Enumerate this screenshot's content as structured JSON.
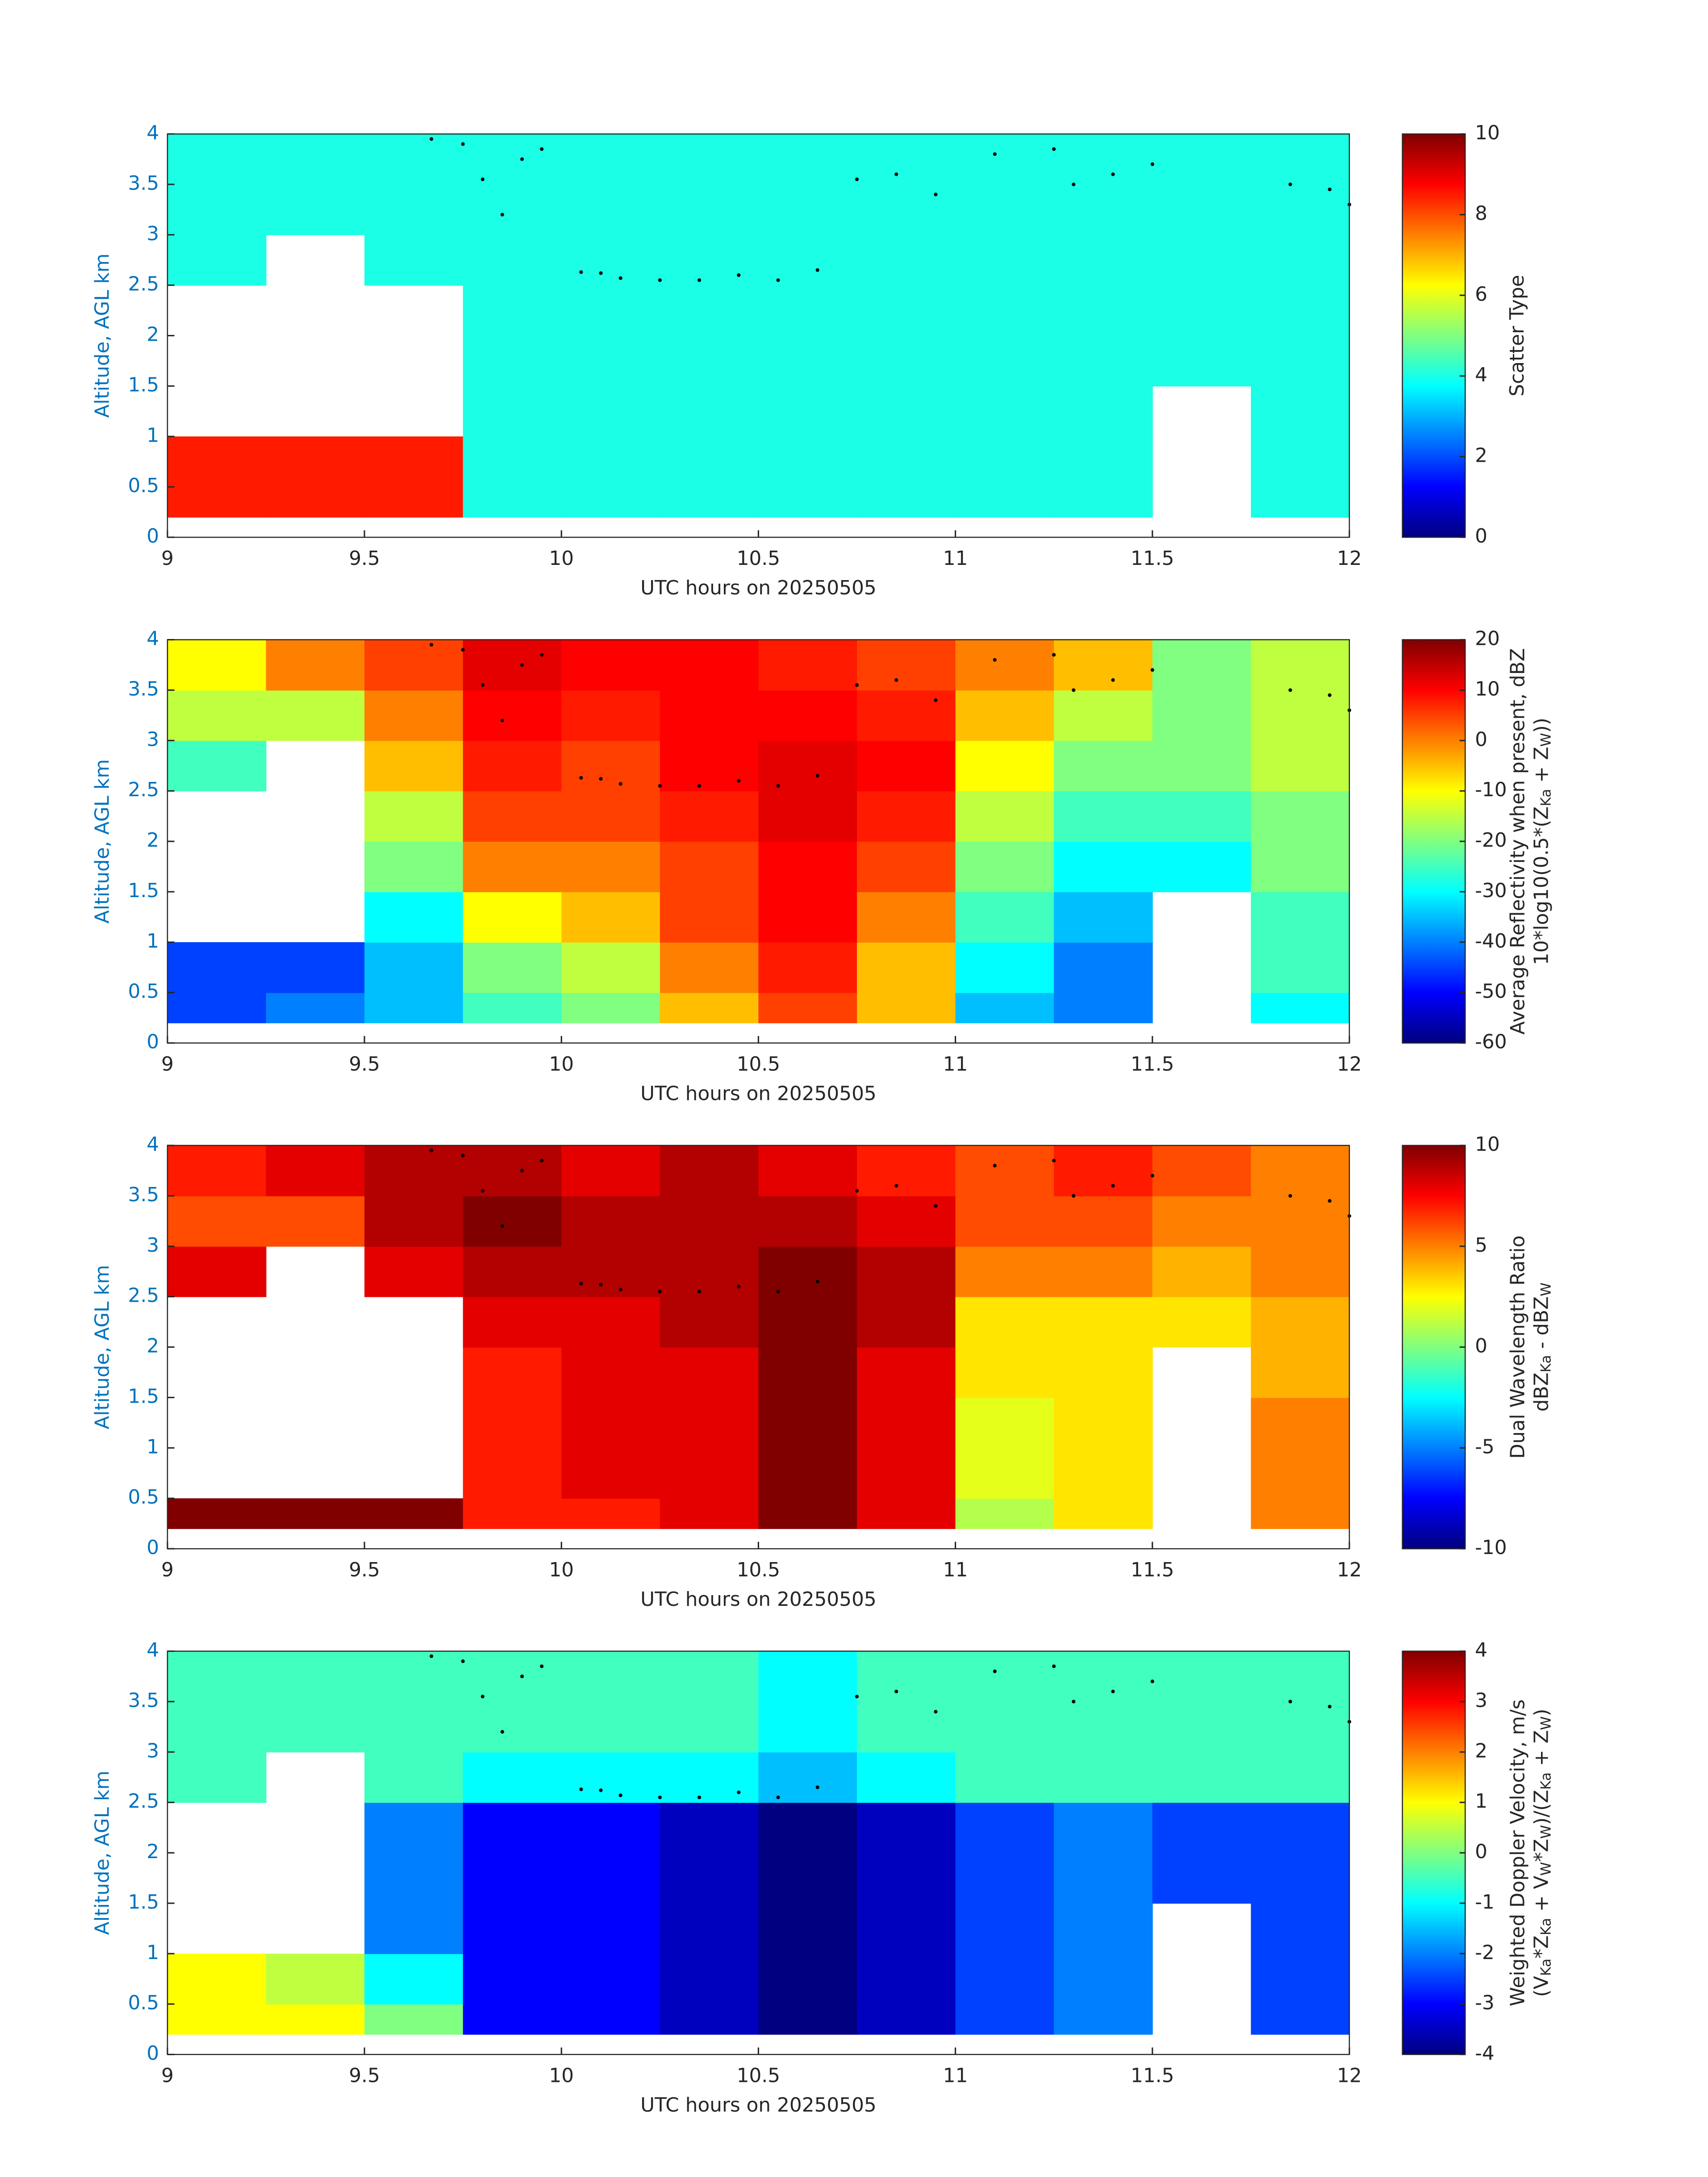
{
  "chart_data": [
    {
      "type": "heatmap",
      "colormap": "jet",
      "xlabel": "UTC hours on 20250505",
      "ylabel": "Altitude, AGL km",
      "xlim": [
        9,
        12
      ],
      "xticks": [
        9,
        9.5,
        10,
        10.5,
        11,
        11.5,
        12
      ],
      "ylim": [
        0,
        4
      ],
      "yticks": [
        0,
        0.5,
        1,
        1.5,
        2,
        2.5,
        3,
        3.5,
        4
      ],
      "zlim": [
        0,
        10
      ],
      "zticks": [
        0,
        2,
        4,
        6,
        8,
        10
      ],
      "colorbar_label": [
        [
          {
            "text": "Scatter Type",
            "sub": false
          }
        ]
      ],
      "x_bins": [
        9,
        9.25,
        9.5,
        9.75,
        10,
        10.25,
        10.5,
        10.75,
        11,
        11.25,
        11.5,
        11.75,
        12
      ],
      "y_bins": [
        0.2,
        0.5,
        1,
        1.5,
        2,
        2.5,
        3,
        3.5,
        4
      ],
      "z": [
        [
          8.5,
          8.5,
          8.5,
          4,
          4,
          4,
          4,
          4,
          4,
          4,
          null,
          4
        ],
        [
          8.5,
          8.5,
          8.5,
          4,
          4,
          4,
          4,
          4,
          4,
          4,
          null,
          4
        ],
        [
          null,
          null,
          null,
          4,
          4,
          4,
          4,
          4,
          4,
          4,
          null,
          4
        ],
        [
          null,
          null,
          null,
          4,
          4,
          4,
          4,
          4,
          4,
          4,
          4,
          4
        ],
        [
          null,
          null,
          null,
          4,
          4,
          4,
          4,
          4,
          4,
          4,
          4,
          4
        ],
        [
          4,
          null,
          4,
          4,
          4,
          4,
          4,
          4,
          4,
          4,
          4,
          4
        ],
        [
          4,
          4,
          4,
          4,
          4,
          4,
          4,
          4,
          4,
          4,
          4,
          4
        ],
        [
          4,
          4,
          4,
          4,
          4,
          4,
          4,
          4,
          4,
          4,
          4,
          4
        ]
      ],
      "markers_x": [
        9.67,
        9.75,
        9.8,
        9.85,
        9.9,
        9.95,
        10.05,
        10.1,
        10.15,
        10.25,
        10.35,
        10.45,
        10.55,
        10.65,
        10.75,
        10.85,
        10.95,
        11.1,
        11.25,
        11.3,
        11.4,
        11.5,
        11.85,
        11.95,
        12
      ],
      "markers_y": [
        3.95,
        3.9,
        3.55,
        3.2,
        3.75,
        3.85,
        2.63,
        2.62,
        2.57,
        2.55,
        2.55,
        2.6,
        2.55,
        2.65,
        3.55,
        3.6,
        3.4,
        3.8,
        3.85,
        3.5,
        3.6,
        3.7,
        3.5,
        3.45,
        3.3
      ],
      "marker_color": "#000000"
    },
    {
      "type": "heatmap",
      "colormap": "jet",
      "xlabel": "UTC hours on 20250505",
      "ylabel": "Altitude, AGL km",
      "xlim": [
        9,
        12
      ],
      "xticks": [
        9,
        9.5,
        10,
        10.5,
        11,
        11.5,
        12
      ],
      "ylim": [
        0,
        4
      ],
      "yticks": [
        0,
        0.5,
        1,
        1.5,
        2,
        2.5,
        3,
        3.5,
        4
      ],
      "zlim": [
        -60,
        20
      ],
      "zticks": [
        -60,
        -50,
        -40,
        -30,
        -20,
        -10,
        0,
        10,
        20
      ],
      "colorbar_label": [
        [
          {
            "text": "Average Reflectivity when present, dBZ",
            "sub": false
          }
        ],
        [
          {
            "text": "10*log10(0.5*(Z",
            "sub": false
          },
          {
            "text": "Ka",
            "sub": true
          },
          {
            "text": " + Z",
            "sub": false
          },
          {
            "text": "W",
            "sub": true
          },
          {
            "text": "))",
            "sub": false
          }
        ]
      ],
      "x_bins": [
        9,
        9.25,
        9.5,
        9.75,
        10,
        10.25,
        10.5,
        10.75,
        11,
        11.25,
        11.5,
        11.75,
        12
      ],
      "y_bins": [
        0.2,
        0.5,
        1,
        1.5,
        2,
        2.5,
        3,
        3.5,
        4
      ],
      "z": [
        [
          -45,
          -40,
          -35,
          -25,
          -20,
          -5,
          5,
          -5,
          -35,
          -40,
          null,
          -30
        ],
        [
          -45,
          -45,
          -35,
          -20,
          -15,
          0,
          8,
          -5,
          -30,
          -40,
          null,
          -25
        ],
        [
          null,
          null,
          -30,
          -10,
          -5,
          5,
          10,
          0,
          -25,
          -35,
          null,
          -25
        ],
        [
          null,
          null,
          -20,
          0,
          0,
          5,
          10,
          5,
          -20,
          -30,
          -30,
          -20
        ],
        [
          null,
          null,
          -15,
          5,
          5,
          8,
          12,
          8,
          -15,
          -25,
          -25,
          -20
        ],
        [
          -25,
          null,
          -5,
          8,
          5,
          10,
          12,
          10,
          -10,
          -20,
          -20,
          -15
        ],
        [
          -15,
          -15,
          0,
          10,
          8,
          10,
          10,
          8,
          -5,
          -15,
          -20,
          -15
        ],
        [
          -10,
          0,
          5,
          12,
          10,
          10,
          8,
          5,
          0,
          -5,
          -20,
          -15
        ]
      ]
    },
    {
      "type": "heatmap",
      "colormap": "jet",
      "xlabel": "UTC hours on 20250505",
      "ylabel": "Altitude, AGL km",
      "xlim": [
        9,
        12
      ],
      "xticks": [
        9,
        9.5,
        10,
        10.5,
        11,
        11.5,
        12
      ],
      "ylim": [
        0,
        4
      ],
      "yticks": [
        0,
        0.5,
        1,
        1.5,
        2,
        2.5,
        3,
        3.5,
        4
      ],
      "zlim": [
        -10,
        10
      ],
      "zticks": [
        -10,
        -5,
        0,
        5,
        10
      ],
      "colorbar_label": [
        [
          {
            "text": "Dual Wavelength Ratio",
            "sub": false
          }
        ],
        [
          {
            "text": "dBZ",
            "sub": false
          },
          {
            "text": "Ka",
            "sub": true
          },
          {
            "text": " - dBZ",
            "sub": false
          },
          {
            "text": "W",
            "sub": true
          }
        ]
      ],
      "x_bins": [
        9,
        9.25,
        9.5,
        9.75,
        10,
        10.25,
        10.5,
        10.75,
        11,
        11.25,
        11.5,
        11.75,
        12
      ],
      "y_bins": [
        0.2,
        0.5,
        1,
        1.5,
        2,
        2.5,
        3,
        3.5,
        4
      ],
      "z": [
        [
          10,
          10,
          10,
          7,
          7,
          8,
          10,
          8,
          1,
          3,
          null,
          5
        ],
        [
          null,
          null,
          null,
          7,
          8,
          8,
          10,
          8,
          2,
          3,
          null,
          5
        ],
        [
          null,
          null,
          null,
          7,
          8,
          8,
          10,
          8,
          2,
          3,
          null,
          5
        ],
        [
          null,
          null,
          null,
          7,
          8,
          8,
          10,
          8,
          3,
          3,
          null,
          4
        ],
        [
          null,
          null,
          null,
          8,
          8,
          9,
          10,
          9,
          3,
          3,
          3,
          4
        ],
        [
          8,
          null,
          8,
          9,
          9,
          9,
          10,
          9,
          5,
          5,
          4,
          5
        ],
        [
          6,
          6,
          9,
          10,
          9,
          9,
          9,
          8,
          6,
          6,
          5,
          5
        ],
        [
          7,
          8,
          9,
          9,
          8,
          9,
          8,
          7,
          6,
          7,
          6,
          5
        ]
      ]
    },
    {
      "type": "heatmap",
      "colormap": "jet",
      "xlabel": "UTC hours on 20250505",
      "ylabel": "Altitude, AGL km",
      "xlim": [
        9,
        12
      ],
      "xticks": [
        9,
        9.5,
        10,
        10.5,
        11,
        11.5,
        12
      ],
      "ylim": [
        0,
        4
      ],
      "yticks": [
        0,
        0.5,
        1,
        1.5,
        2,
        2.5,
        3,
        3.5,
        4
      ],
      "zlim": [
        -4,
        4
      ],
      "zticks": [
        -4,
        -3,
        -2,
        -1,
        0,
        1,
        2,
        3,
        4
      ],
      "colorbar_label": [
        [
          {
            "text": "Weighted Doppler Velocity, m/s",
            "sub": false
          }
        ],
        [
          {
            "text": "(V",
            "sub": false
          },
          {
            "text": "Ka",
            "sub": true
          },
          {
            "text": "*Z",
            "sub": false
          },
          {
            "text": "Ka",
            "sub": true
          },
          {
            "text": " + V",
            "sub": false
          },
          {
            "text": "W",
            "sub": true
          },
          {
            "text": "*Z",
            "sub": false
          },
          {
            "text": "W",
            "sub": true
          },
          {
            "text": ")/(Z",
            "sub": false
          },
          {
            "text": "Ka",
            "sub": true
          },
          {
            "text": " + Z",
            "sub": false
          },
          {
            "text": "W",
            "sub": true
          },
          {
            "text": ")",
            "sub": false
          }
        ]
      ],
      "x_bins": [
        9,
        9.25,
        9.5,
        9.75,
        10,
        10.25,
        10.5,
        10.75,
        11,
        11.25,
        11.5,
        11.75,
        12
      ],
      "y_bins": [
        0.2,
        0.5,
        1,
        1.5,
        2,
        2.5,
        3,
        3.5,
        4
      ],
      "z": [
        [
          1,
          1,
          0,
          -3,
          -3,
          -3.5,
          -4,
          -3.5,
          -2.5,
          -2,
          null,
          -2.5
        ],
        [
          1,
          0.5,
          -1,
          -3,
          -3,
          -3.5,
          -4,
          -3.5,
          -2.5,
          -2,
          null,
          -2.5
        ],
        [
          null,
          null,
          -2,
          -3,
          -3,
          -3.5,
          -4,
          -3.5,
          -2.5,
          -2,
          null,
          -2.5
        ],
        [
          null,
          null,
          -2,
          -3,
          -3,
          -3.5,
          -4,
          -3.5,
          -2.5,
          -2,
          -2.5,
          -2.5
        ],
        [
          null,
          null,
          -2,
          -3,
          -3,
          -3.5,
          -4,
          -3.5,
          -2.5,
          -2,
          -2.5,
          -2.5
        ],
        [
          -0.5,
          null,
          -0.5,
          -1,
          -1,
          -1,
          -1.5,
          -1,
          -0.5,
          -0.5,
          -0.5,
          -0.5
        ],
        [
          -0.5,
          -0.5,
          -0.5,
          -0.5,
          -0.5,
          -0.5,
          -1,
          -0.5,
          -0.5,
          -0.5,
          -0.5,
          -0.5
        ],
        [
          -0.5,
          -0.5,
          -0.5,
          -0.5,
          -0.5,
          -0.5,
          -1,
          -0.5,
          -0.5,
          -0.5,
          -0.5,
          -0.5
        ]
      ]
    }
  ]
}
